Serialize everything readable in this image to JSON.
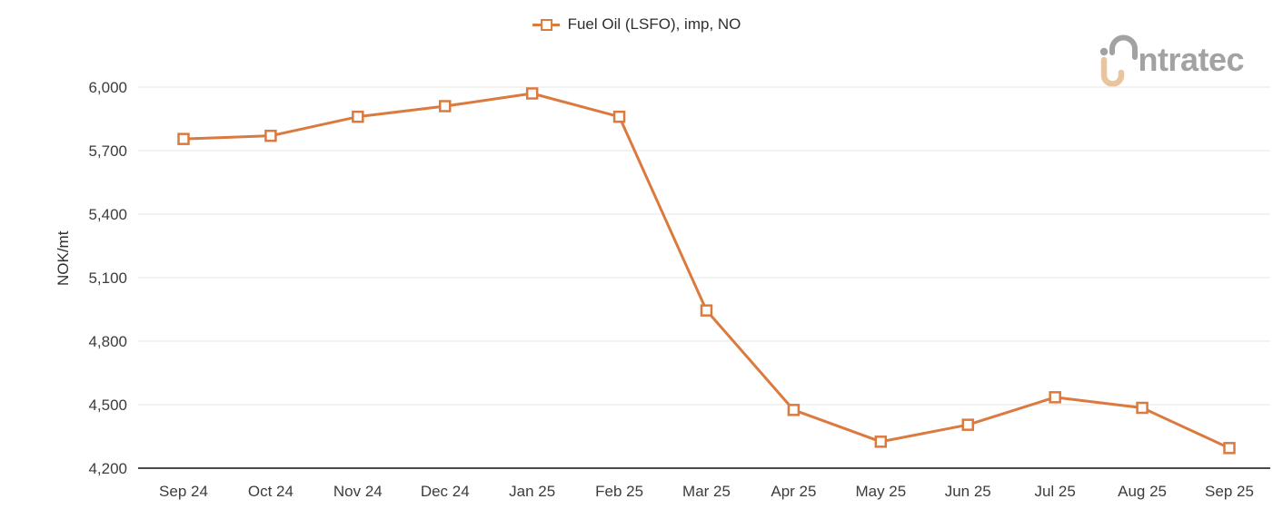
{
  "logo": {
    "text": "ntratec",
    "brand": "intratec",
    "gray": "#A2A2A2",
    "tan": "#E8C59E"
  },
  "colors": {
    "accent_orange": "#DB7A3F",
    "gridline": "#EDEDED",
    "axis_line": "#4A4A4A",
    "tick_text": "#3C3C3C"
  },
  "chart_data": {
    "type": "line",
    "legend": "Fuel Oil (LSFO), imp, NO",
    "ylabel": "NOK/mt",
    "categories": [
      "Sep 24",
      "Oct 24",
      "Nov 24",
      "Dec 24",
      "Jan 25",
      "Feb 25",
      "Mar 25",
      "Apr 25",
      "May 25",
      "Jun 25",
      "Jul 25",
      "Aug 25",
      "Sep 25"
    ],
    "values": [
      5755,
      5770,
      5860,
      5910,
      5970,
      5860,
      4945,
      4475,
      4325,
      4405,
      4535,
      4485,
      4295
    ],
    "ylim": [
      4200,
      6000
    ],
    "yticks": [
      6000,
      5700,
      5400,
      5100,
      4800,
      4500,
      4200
    ],
    "ytick_labels": [
      "6,000",
      "5,700",
      "5,400",
      "5,100",
      "4,800",
      "4,500",
      "4,200"
    ],
    "grid": true,
    "legend_position": "top-center",
    "marker": "open-square",
    "line_color": "#DB7A3F"
  }
}
